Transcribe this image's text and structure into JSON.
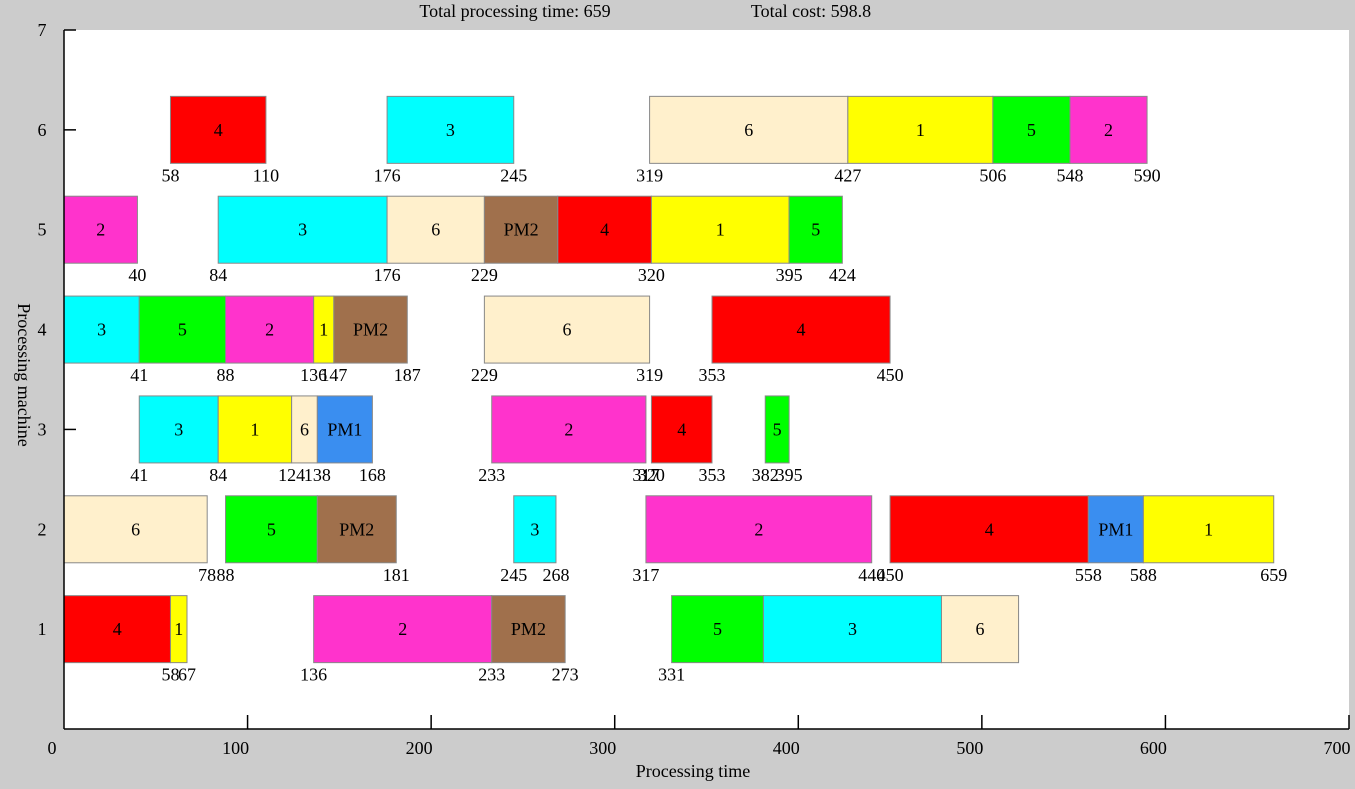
{
  "header": {
    "total_time": "Total processing time: 659",
    "total_cost": "Total cost: 598.8"
  },
  "chart_data": {
    "type": "gantt",
    "xlabel": "Processing time",
    "ylabel": "Processing machine",
    "xlim": [
      0,
      700
    ],
    "ylim": [
      0,
      7
    ],
    "x_ticks": [
      "0",
      "100",
      "200",
      "300",
      "400",
      "500",
      "600",
      "700"
    ],
    "y_ticks": [
      "1",
      "2",
      "3",
      "4",
      "5",
      "6",
      "7"
    ],
    "colors": {
      "1": "#ffff00",
      "2": "#ff33cc",
      "3": "#00ffff",
      "4": "#ff0000",
      "5": "#00ff00",
      "6": "#fff0cc",
      "PM1": "#3a8ef0",
      "PM2": "#a0704c"
    },
    "tasks": [
      {
        "machine": 1,
        "label": "4",
        "start": 0,
        "end": 58,
        "start_label": "",
        "end_label": "58"
      },
      {
        "machine": 1,
        "label": "1",
        "start": 58,
        "end": 67,
        "start_label": "",
        "end_label": "67"
      },
      {
        "machine": 1,
        "label": "2",
        "start": 136,
        "end": 233,
        "start_label": "136",
        "end_label": "233"
      },
      {
        "machine": 1,
        "label": "PM2",
        "start": 233,
        "end": 273,
        "start_label": "",
        "end_label": "273"
      },
      {
        "machine": 1,
        "label": "5",
        "start": 331,
        "end": 381,
        "start_label": "331",
        "end_label": ""
      },
      {
        "machine": 1,
        "label": "3",
        "start": 381,
        "end": 478,
        "start_label": "",
        "end_label": ""
      },
      {
        "machine": 1,
        "label": "6",
        "start": 478,
        "end": 520,
        "start_label": "",
        "end_label": ""
      },
      {
        "machine": 2,
        "label": "6",
        "start": 0,
        "end": 78,
        "start_label": "",
        "end_label": "78"
      },
      {
        "machine": 2,
        "label": "5",
        "start": 88,
        "end": 138,
        "start_label": "88",
        "end_label": ""
      },
      {
        "machine": 2,
        "label": "PM2",
        "start": 138,
        "end": 181,
        "start_label": "",
        "end_label": "181"
      },
      {
        "machine": 2,
        "label": "3",
        "start": 245,
        "end": 268,
        "start_label": "245",
        "end_label": "268"
      },
      {
        "machine": 2,
        "label": "2",
        "start": 317,
        "end": 440,
        "start_label": "317",
        "end_label": "440"
      },
      {
        "machine": 2,
        "label": "4",
        "start": 450,
        "end": 558,
        "start_label": "450",
        "end_label": "558"
      },
      {
        "machine": 2,
        "label": "PM1",
        "start": 558,
        "end": 588,
        "start_label": "",
        "end_label": "588"
      },
      {
        "machine": 2,
        "label": "1",
        "start": 588,
        "end": 659,
        "start_label": "",
        "end_label": "659"
      },
      {
        "machine": 3,
        "label": "3",
        "start": 41,
        "end": 84,
        "start_label": "41",
        "end_label": "84"
      },
      {
        "machine": 3,
        "label": "1",
        "start": 84,
        "end": 124,
        "start_label": "",
        "end_label": "124"
      },
      {
        "machine": 3,
        "label": "6",
        "start": 124,
        "end": 138,
        "start_label": "",
        "end_label": "138"
      },
      {
        "machine": 3,
        "label": "PM1",
        "start": 138,
        "end": 168,
        "start_label": "",
        "end_label": "168"
      },
      {
        "machine": 3,
        "label": "2",
        "start": 233,
        "end": 317,
        "start_label": "233",
        "end_label": "317"
      },
      {
        "machine": 3,
        "label": "4",
        "start": 320,
        "end": 353,
        "start_label": "320",
        "end_label": "353"
      },
      {
        "machine": 3,
        "label": "5",
        "start": 382,
        "end": 395,
        "start_label": "382",
        "end_label": "395"
      },
      {
        "machine": 4,
        "label": "3",
        "start": 0,
        "end": 41,
        "start_label": "",
        "end_label": "41"
      },
      {
        "machine": 4,
        "label": "5",
        "start": 41,
        "end": 88,
        "start_label": "",
        "end_label": "88"
      },
      {
        "machine": 4,
        "label": "2",
        "start": 88,
        "end": 136,
        "start_label": "",
        "end_label": "136"
      },
      {
        "machine": 4,
        "label": "1",
        "start": 136,
        "end": 147,
        "start_label": "",
        "end_label": "147"
      },
      {
        "machine": 4,
        "label": "PM2",
        "start": 147,
        "end": 187,
        "start_label": "",
        "end_label": "187"
      },
      {
        "machine": 4,
        "label": "6",
        "start": 229,
        "end": 319,
        "start_label": "229",
        "end_label": "319"
      },
      {
        "machine": 4,
        "label": "4",
        "start": 353,
        "end": 450,
        "start_label": "353",
        "end_label": "450"
      },
      {
        "machine": 5,
        "label": "2",
        "start": 0,
        "end": 40,
        "start_label": "",
        "end_label": "40"
      },
      {
        "machine": 5,
        "label": "3",
        "start": 84,
        "end": 176,
        "start_label": "84",
        "end_label": "176"
      },
      {
        "machine": 5,
        "label": "6",
        "start": 176,
        "end": 229,
        "start_label": "",
        "end_label": "229"
      },
      {
        "machine": 5,
        "label": "PM2",
        "start": 229,
        "end": 269,
        "start_label": "",
        "end_label": ""
      },
      {
        "machine": 5,
        "label": "4",
        "start": 269,
        "end": 320,
        "start_label": "",
        "end_label": "320"
      },
      {
        "machine": 5,
        "label": "1",
        "start": 320,
        "end": 395,
        "start_label": "",
        "end_label": "395"
      },
      {
        "machine": 5,
        "label": "5",
        "start": 395,
        "end": 424,
        "start_label": "",
        "end_label": "424"
      },
      {
        "machine": 6,
        "label": "4",
        "start": 58,
        "end": 110,
        "start_label": "58",
        "end_label": "110"
      },
      {
        "machine": 6,
        "label": "3",
        "start": 176,
        "end": 245,
        "start_label": "176",
        "end_label": "245"
      },
      {
        "machine": 6,
        "label": "6",
        "start": 319,
        "end": 427,
        "start_label": "319",
        "end_label": "427"
      },
      {
        "machine": 6,
        "label": "1",
        "start": 427,
        "end": 506,
        "start_label": "",
        "end_label": "506"
      },
      {
        "machine": 6,
        "label": "5",
        "start": 506,
        "end": 548,
        "start_label": "",
        "end_label": "548"
      },
      {
        "machine": 6,
        "label": "2",
        "start": 548,
        "end": 590,
        "start_label": "",
        "end_label": "590"
      }
    ]
  }
}
